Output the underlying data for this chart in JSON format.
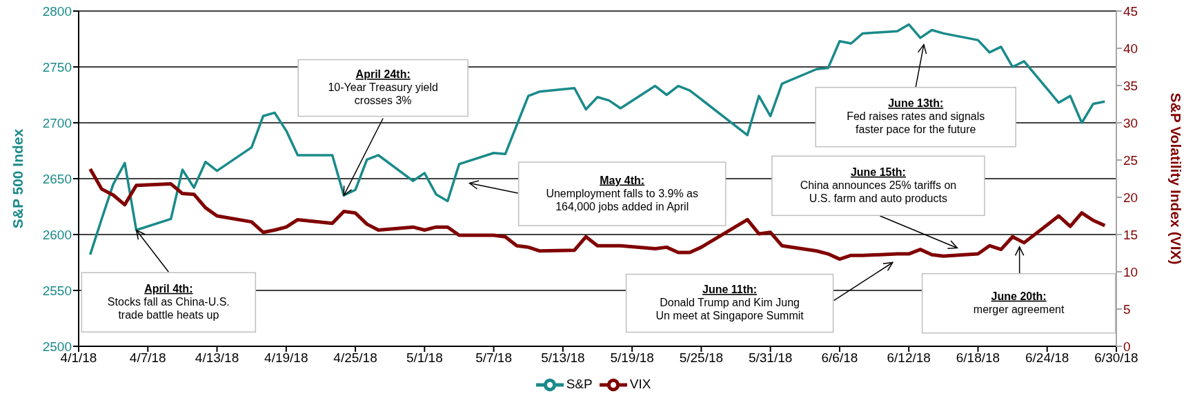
{
  "chart_data": {
    "type": "line",
    "x": [
      "--04-02",
      "--04-03",
      "--04-04",
      "--04-05",
      "--04-06",
      "--04-09",
      "--04-10",
      "--04-11",
      "--04-12",
      "--04-13",
      "--04-16",
      "--04-17",
      "--04-18",
      "--04-19",
      "--04-20",
      "--04-23",
      "--04-24",
      "--04-25",
      "--04-26",
      "--04-27",
      "--04-30",
      "--05-01",
      "--05-02",
      "--05-03",
      "--05-04",
      "--05-07",
      "--05-08",
      "--05-09",
      "--05-10",
      "--05-11",
      "--05-14",
      "--05-15",
      "--05-16",
      "--05-17",
      "--05-18",
      "--05-21",
      "--05-22",
      "--05-23",
      "--05-24",
      "--05-25",
      "--05-29",
      "--05-30",
      "--05-31",
      "--06-01",
      "--06-04",
      "--06-05",
      "--06-06",
      "--06-07",
      "--06-08",
      "--06-11",
      "--06-12",
      "--06-13",
      "--06-14",
      "--06-15",
      "--06-18",
      "--06-19",
      "--06-20",
      "--06-21",
      "--06-22",
      "--06-25",
      "--06-26",
      "--06-27",
      "--06-28",
      "--06-29"
    ],
    "series": [
      {
        "name": "S&P",
        "color": "#1a8a8a",
        "values": [
          2582,
          2614,
          2645,
          2664,
          2604,
          2614,
          2658,
          2642,
          2665,
          2657,
          2678,
          2706,
          2709,
          2693,
          2671,
          2671,
          2635,
          2640,
          2667,
          2671,
          2648,
          2655,
          2636,
          2630,
          2663,
          2673,
          2672,
          2698,
          2724,
          2728,
          2731,
          2712,
          2723,
          2720,
          2713,
          2733,
          2725,
          2733,
          2729,
          2721,
          2689,
          2724,
          2706,
          2735,
          2748,
          2749,
          2773,
          2771,
          2780,
          2782,
          2788,
          2776,
          2783,
          2780,
          2774,
          2763,
          2768,
          2750,
          2755,
          2718,
          2724,
          2700,
          2717,
          2719
        ]
      },
      {
        "name": "VIX",
        "color": "#800000",
        "axis": "y2",
        "values": [
          23.8,
          21.1,
          20.3,
          19.0,
          21.6,
          21.8,
          20.5,
          20.4,
          18.6,
          17.5,
          16.7,
          15.3,
          15.6,
          16.0,
          17.0,
          16.5,
          18.1,
          17.9,
          16.4,
          15.6,
          16.0,
          15.6,
          16.0,
          16.0,
          14.9,
          14.9,
          14.7,
          13.5,
          13.3,
          12.8,
          12.9,
          14.7,
          13.5,
          13.5,
          13.5,
          13.1,
          13.3,
          12.6,
          12.6,
          13.3,
          17.0,
          15.1,
          15.3,
          13.5,
          12.8,
          12.4,
          11.7,
          12.2,
          12.2,
          12.4,
          12.4,
          13.0,
          12.3,
          12.1,
          12.4,
          13.5,
          13.0,
          14.7,
          13.9,
          17.5,
          16.1,
          17.9,
          16.9,
          16.2
        ]
      }
    ],
    "ylabel": "S&P 500 Index",
    "y2label": "S&P Volatility Index (VIX)",
    "xlim": [
      "--04-01",
      "--06-30"
    ],
    "xticks": [
      {
        "value": "--04-01",
        "label": "4/1/18"
      },
      {
        "value": "--04-07",
        "label": "4/7/18"
      },
      {
        "value": "--04-13",
        "label": "4/13/18"
      },
      {
        "value": "--04-19",
        "label": "4/19/18"
      },
      {
        "value": "--04-25",
        "label": "4/25/18"
      },
      {
        "value": "--05-01",
        "label": "5/1/18"
      },
      {
        "value": "--05-07",
        "label": "5/7/18"
      },
      {
        "value": "--05-13",
        "label": "5/13/18"
      },
      {
        "value": "--05-19",
        "label": "5/19/18"
      },
      {
        "value": "--05-25",
        "label": "5/25/18"
      },
      {
        "value": "--05-31",
        "label": "5/31/18"
      },
      {
        "value": "--06-06",
        "label": "6/6/18"
      },
      {
        "value": "--06-12",
        "label": "6/12/18"
      },
      {
        "value": "--06-18",
        "label": "6/18/18"
      },
      {
        "value": "--06-24",
        "label": "6/24/18"
      },
      {
        "value": "--06-30",
        "label": "6/30/18"
      }
    ],
    "ylim": [
      2500,
      2800
    ],
    "yticks": [
      2500,
      2550,
      2600,
      2650,
      2700,
      2750,
      2800
    ],
    "y2lim": [
      0,
      45
    ],
    "y2ticks": [
      0,
      5,
      10,
      15,
      20,
      25,
      30,
      35,
      40,
      45
    ],
    "grid": "y",
    "legend": "bottom",
    "marker": "none",
    "line_style": "solid",
    "annotations": [
      {
        "text": "April 4th:\nStocks fall as China-U.S.\ntrade battle heats up",
        "x": "--04-06",
        "y": 2604
      },
      {
        "text": "April 24th:\n10-Year Treasury yield\ncrosses 3%",
        "x": "--04-24",
        "y": 2635
      },
      "May 4th:\nUnemployment falls to 3.9% as\n164,000 jobs added in April",
      "June 11th:\nDonald Trump and Kim Jung\nUn meet at Singapore Summit",
      "June 13th:\nFed raises rates and signals\nfaster pace for the future",
      "June 15th:\nChina announces 25% tariffs on\nU.S. farm and auto products",
      "June 20th:\nmerger agreement"
    ]
  }
}
